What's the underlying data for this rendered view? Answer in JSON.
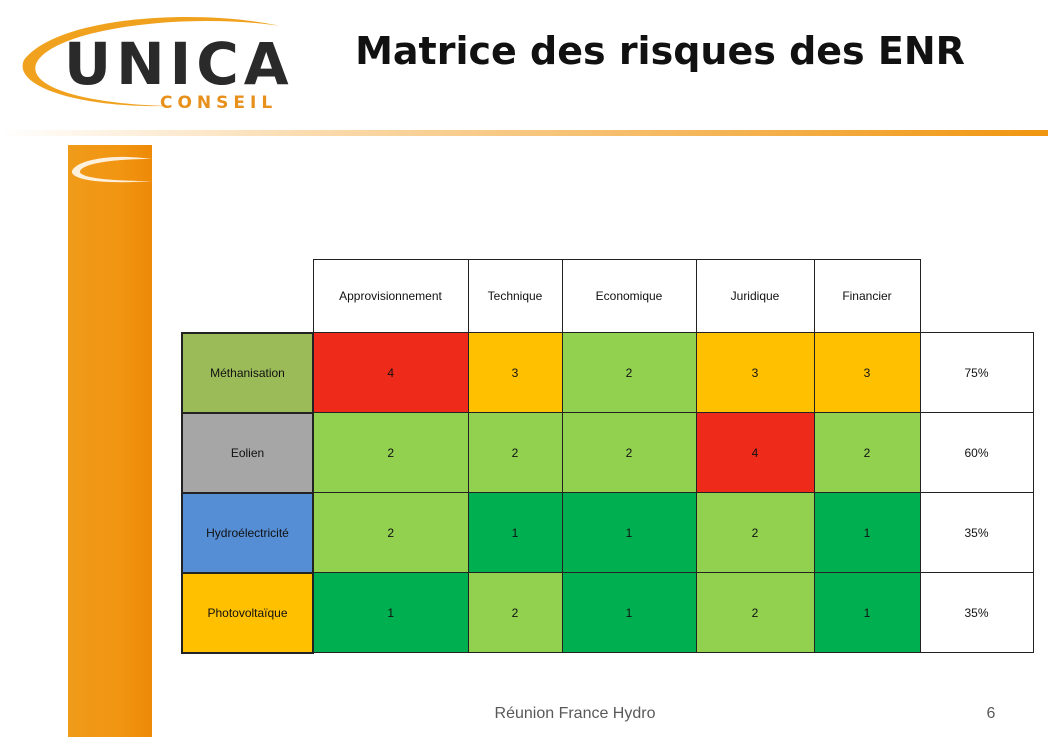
{
  "header": {
    "logo_word": "UNICA",
    "logo_sub": "CONSEIL",
    "title": "Matrice des risques des ENR"
  },
  "table": {
    "columns": [
      "Approvisionnement",
      "Technique",
      "Economique",
      "Juridique",
      "Financier"
    ],
    "rows": [
      {
        "label": "Méthanisation",
        "label_color": "#9bbb59",
        "scores": [
          "4",
          "3",
          "2",
          "3",
          "3"
        ],
        "total": "75%"
      },
      {
        "label": "Eolien",
        "label_color": "#a6a6a6",
        "scores": [
          "2",
          "2",
          "2",
          "4",
          "2"
        ],
        "total": "60%"
      },
      {
        "label": "Hydroélectricité",
        "label_color": "#558ed5",
        "scores": [
          "2",
          "1",
          "1",
          "2",
          "1"
        ],
        "total": "35%"
      },
      {
        "label": "Photovoltaïque",
        "label_color": "#ffc000",
        "scores": [
          "1",
          "2",
          "1",
          "2",
          "1"
        ],
        "total": "35%"
      }
    ],
    "score_colors": {
      "1": "#00b050",
      "2": "#92d050",
      "3": "#ffc000",
      "4": "#ee2a1b"
    }
  },
  "footer": {
    "text": "Réunion France Hydro",
    "page_number": "6"
  }
}
